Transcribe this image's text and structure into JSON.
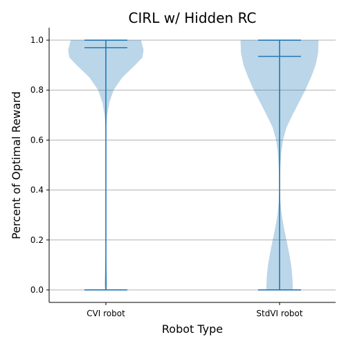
{
  "chart_data": {
    "type": "violin",
    "title": "CIRL w/ Hidden RC",
    "xlabel": "Robot Type",
    "ylabel": "Percent of Optimal Reward",
    "ylim": [
      -0.05,
      1.05
    ],
    "yticks": [
      0.0,
      0.2,
      0.4,
      0.6,
      0.8,
      1.0
    ],
    "ytick_labels": [
      "0.0",
      "0.2",
      "0.4",
      "0.6",
      "0.8",
      "1.0"
    ],
    "grid": "y",
    "colors": {
      "body": "#1f77b4",
      "lines": "#1f77b4",
      "grid": "#b0b0b0"
    },
    "categories": [
      "CVI robot",
      "StdVI robot"
    ],
    "series": [
      {
        "min": 0.0,
        "max": 1.0,
        "median": 0.97,
        "density": [
          {
            "y": 0.0,
            "w": 0.02
          },
          {
            "y": 0.02,
            "w": 0.03
          },
          {
            "y": 0.05,
            "w": 0.025
          },
          {
            "y": 0.1,
            "w": 0.015
          },
          {
            "y": 0.15,
            "w": 0.005
          },
          {
            "y": 0.2,
            "w": 0.003
          },
          {
            "y": 0.4,
            "w": 0.003
          },
          {
            "y": 0.6,
            "w": 0.005
          },
          {
            "y": 0.66,
            "w": 0.01
          },
          {
            "y": 0.7,
            "w": 0.03
          },
          {
            "y": 0.75,
            "w": 0.08
          },
          {
            "y": 0.8,
            "w": 0.18
          },
          {
            "y": 0.85,
            "w": 0.38
          },
          {
            "y": 0.9,
            "w": 0.68
          },
          {
            "y": 0.93,
            "w": 0.85
          },
          {
            "y": 0.96,
            "w": 0.88
          },
          {
            "y": 0.98,
            "w": 0.85
          },
          {
            "y": 1.0,
            "w": 0.82
          }
        ]
      },
      {
        "min": 0.0,
        "max": 1.0,
        "median": 0.935,
        "density": [
          {
            "y": 0.0,
            "w": 0.31
          },
          {
            "y": 0.05,
            "w": 0.3
          },
          {
            "y": 0.1,
            "w": 0.27
          },
          {
            "y": 0.15,
            "w": 0.22
          },
          {
            "y": 0.2,
            "w": 0.16
          },
          {
            "y": 0.25,
            "w": 0.1
          },
          {
            "y": 0.3,
            "w": 0.05
          },
          {
            "y": 0.35,
            "w": 0.02
          },
          {
            "y": 0.4,
            "w": 0.01
          },
          {
            "y": 0.45,
            "w": 0.012
          },
          {
            "y": 0.5,
            "w": 0.02
          },
          {
            "y": 0.55,
            "w": 0.04
          },
          {
            "y": 0.6,
            "w": 0.08
          },
          {
            "y": 0.65,
            "w": 0.16
          },
          {
            "y": 0.7,
            "w": 0.3
          },
          {
            "y": 0.75,
            "w": 0.45
          },
          {
            "y": 0.8,
            "w": 0.6
          },
          {
            "y": 0.85,
            "w": 0.73
          },
          {
            "y": 0.9,
            "w": 0.84
          },
          {
            "y": 0.95,
            "w": 0.9
          },
          {
            "y": 1.0,
            "w": 0.91
          }
        ]
      }
    ]
  }
}
